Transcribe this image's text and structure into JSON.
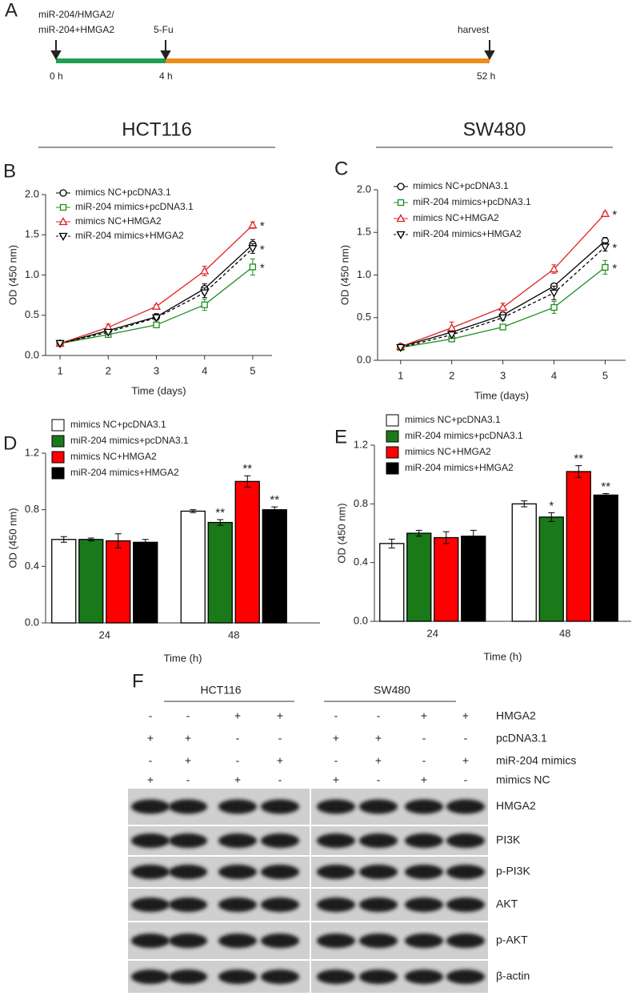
{
  "timeline": {
    "panel": "A",
    "treatment_label": [
      "miR-204/HMGA2/",
      "miR-204+HMGA2"
    ],
    "drug_label": "5-Fu",
    "end_label": "harvest",
    "times": [
      "0 h",
      "4 h",
      "52 h"
    ]
  },
  "headers": [
    "HCT116",
    "SW480"
  ],
  "chart_data": [
    {
      "panel": "B",
      "type": "line",
      "x_label": "Time (days)",
      "y_label": "OD (450 nm)",
      "x": [
        1,
        2,
        3,
        4,
        5
      ],
      "xlim": [
        0.7,
        5.4
      ],
      "xticks": [
        1,
        2,
        3,
        4,
        5
      ],
      "ylim": [
        0,
        2
      ],
      "yticks": [
        {
          "value": 0,
          "label": "0.0"
        },
        {
          "value": 0.5,
          "label": "0.5"
        },
        {
          "value": 1,
          "label": "1.0"
        },
        {
          "value": 1.5,
          "label": "1.5"
        },
        {
          "value": 2,
          "label": "2.0"
        }
      ],
      "series": [
        {
          "name": "mimics NC+pcDNA3.1",
          "color": "#000000",
          "marker": "circle",
          "dash": false,
          "values": [
            0.15,
            0.31,
            0.48,
            0.83,
            1.38
          ],
          "error": [
            0.02,
            0.03,
            0.04,
            0.06,
            0.06
          ]
        },
        {
          "name": "miR-204 mimics+pcDNA3.1",
          "color": "#1e8c1e",
          "marker": "square",
          "dash": false,
          "values": [
            0.15,
            0.26,
            0.38,
            0.63,
            1.1
          ],
          "error": [
            0.02,
            0.02,
            0.03,
            0.07,
            0.1
          ],
          "significance": [
            null,
            null,
            null,
            null,
            "*"
          ]
        },
        {
          "name": "mimics NC+HMGA2",
          "color": "#e02020",
          "marker": "triangle",
          "dash": false,
          "values": [
            0.15,
            0.35,
            0.61,
            1.05,
            1.62
          ],
          "error": [
            0.02,
            0.04,
            0.02,
            0.06,
            0.04
          ],
          "significance": [
            null,
            null,
            null,
            null,
            "*"
          ]
        },
        {
          "name": "miR-204 mimics+HMGA2",
          "color": "#000000",
          "marker": "triangle-down",
          "dash": true,
          "values": [
            0.15,
            0.29,
            0.47,
            0.78,
            1.33
          ],
          "error": [
            0.02,
            0.03,
            0.03,
            0.06,
            0.06
          ],
          "significance": [
            null,
            null,
            null,
            null,
            "*"
          ]
        }
      ]
    },
    {
      "panel": "C",
      "type": "line",
      "x_label": "Time (days)",
      "y_label": "OD (450 nm)",
      "x": [
        1,
        2,
        3,
        4,
        5
      ],
      "xlim": [
        0.55,
        5.4
      ],
      "xticks": [
        1,
        2,
        3,
        4,
        5
      ],
      "ylim": [
        0,
        2
      ],
      "yticks": [
        {
          "value": 0,
          "label": "0.0"
        },
        {
          "value": 0.5,
          "label": "0.5"
        },
        {
          "value": 1,
          "label": "1.0"
        },
        {
          "value": 1.5,
          "label": "1.5"
        },
        {
          "value": 2,
          "label": "2.0"
        }
      ],
      "series": [
        {
          "name": "mimics NC+pcDNA3.1",
          "color": "#000000",
          "marker": "circle",
          "dash": false,
          "values": [
            0.16,
            0.33,
            0.53,
            0.87,
            1.4
          ],
          "error": [
            0.02,
            0.04,
            0.03,
            0.03,
            0.04
          ]
        },
        {
          "name": "miR-204 mimics+pcDNA3.1",
          "color": "#1e8c1e",
          "marker": "square",
          "dash": false,
          "values": [
            0.15,
            0.25,
            0.39,
            0.62,
            1.09
          ],
          "error": [
            0.02,
            0.03,
            0.03,
            0.07,
            0.08
          ],
          "significance": [
            null,
            null,
            null,
            null,
            "*"
          ]
        },
        {
          "name": "mimics NC+HMGA2",
          "color": "#e02020",
          "marker": "triangle",
          "dash": false,
          "values": [
            0.16,
            0.38,
            0.62,
            1.07,
            1.72
          ],
          "error": [
            0.02,
            0.07,
            0.05,
            0.05,
            0.02
          ],
          "significance": [
            null,
            null,
            null,
            null,
            "*"
          ]
        },
        {
          "name": "miR-204 mimics+HMGA2",
          "color": "#000000",
          "marker": "triangle-down",
          "dash": true,
          "values": [
            0.15,
            0.3,
            0.5,
            0.79,
            1.33
          ],
          "error": [
            0.02,
            0.04,
            0.03,
            0.08,
            0.05
          ],
          "significance": [
            null,
            null,
            null,
            null,
            "*"
          ]
        }
      ]
    },
    {
      "panel": "D",
      "type": "bar",
      "x_label": "Time (h)",
      "y_label": "OD (450 nm)",
      "categories": [
        "24",
        "48"
      ],
      "ylim": [
        0,
        1.2
      ],
      "yticks": [
        {
          "value": 0,
          "label": "0.0"
        },
        {
          "value": 0.4,
          "label": "0.4"
        },
        {
          "value": 0.8,
          "label": "0.8"
        },
        {
          "value": 1.2,
          "label": "1.2"
        }
      ],
      "series": [
        {
          "name": "mimics NC+pcDNA3.1",
          "color": "#ffffff",
          "values": [
            0.59,
            0.79
          ],
          "error": [
            0.02,
            0.01
          ]
        },
        {
          "name": "miR-204 mimics+pcDNA3.1",
          "color": "#1a7a1a",
          "values": [
            0.59,
            0.71
          ],
          "error": [
            0.01,
            0.02
          ],
          "significance": [
            null,
            "**"
          ]
        },
        {
          "name": "mimics NC+HMGA2",
          "color": "#ff0000",
          "values": [
            0.58,
            1.0
          ],
          "error": [
            0.05,
            0.04
          ],
          "significance": [
            null,
            "**"
          ]
        },
        {
          "name": "miR-204 mimics+HMGA2",
          "color": "#000000",
          "values": [
            0.57,
            0.8
          ],
          "error": [
            0.02,
            0.02
          ],
          "significance": [
            null,
            "**"
          ]
        }
      ]
    },
    {
      "panel": "E",
      "type": "bar",
      "x_label": "Time (h)",
      "y_label": "OD (450 nm)",
      "categories": [
        "24",
        "48"
      ],
      "ylim": [
        0,
        1.2
      ],
      "yticks": [
        {
          "value": 0,
          "label": "0.0"
        },
        {
          "value": 0.4,
          "label": "0.4"
        },
        {
          "value": 0.8,
          "label": "0.8"
        },
        {
          "value": 1.2,
          "label": "1.2"
        }
      ],
      "series": [
        {
          "name": "mimics NC+pcDNA3.1",
          "color": "#ffffff",
          "values": [
            0.53,
            0.8
          ],
          "error": [
            0.03,
            0.02
          ]
        },
        {
          "name": "miR-204 mimics+pcDNA3.1",
          "color": "#1a7a1a",
          "values": [
            0.6,
            0.71
          ],
          "error": [
            0.02,
            0.03
          ],
          "significance": [
            null,
            "*"
          ]
        },
        {
          "name": "mimics NC+HMGA2",
          "color": "#ff0000",
          "values": [
            0.57,
            1.02
          ],
          "error": [
            0.04,
            0.04
          ],
          "significance": [
            null,
            "**"
          ]
        },
        {
          "name": "miR-204 mimics+HMGA2",
          "color": "#000000",
          "values": [
            0.58,
            0.86
          ],
          "error": [
            0.04,
            0.01
          ],
          "significance": [
            null,
            "**"
          ]
        }
      ]
    }
  ],
  "blot": {
    "panel": "F",
    "groups": [
      "HCT116",
      "SW480"
    ],
    "conditions": [
      {
        "name": "HMGA2",
        "signs": [
          "-",
          "-",
          "+",
          "+",
          "-",
          "-",
          "+",
          "+"
        ]
      },
      {
        "name": "pcDNA3.1",
        "signs": [
          "+",
          "+",
          "-",
          "-",
          "+",
          "+",
          "-",
          "-"
        ]
      },
      {
        "name": "miR-204 mimics",
        "signs": [
          "-",
          "+",
          "-",
          "+",
          "-",
          "+",
          "-",
          "+"
        ]
      },
      {
        "name": "mimics NC",
        "signs": [
          "+",
          "-",
          "+",
          "-",
          "+",
          "-",
          "+",
          "-"
        ]
      }
    ],
    "bands": [
      "HMGA2",
      "PI3K",
      "p-PI3K",
      "AKT",
      "p-AKT",
      "β-actin"
    ]
  }
}
